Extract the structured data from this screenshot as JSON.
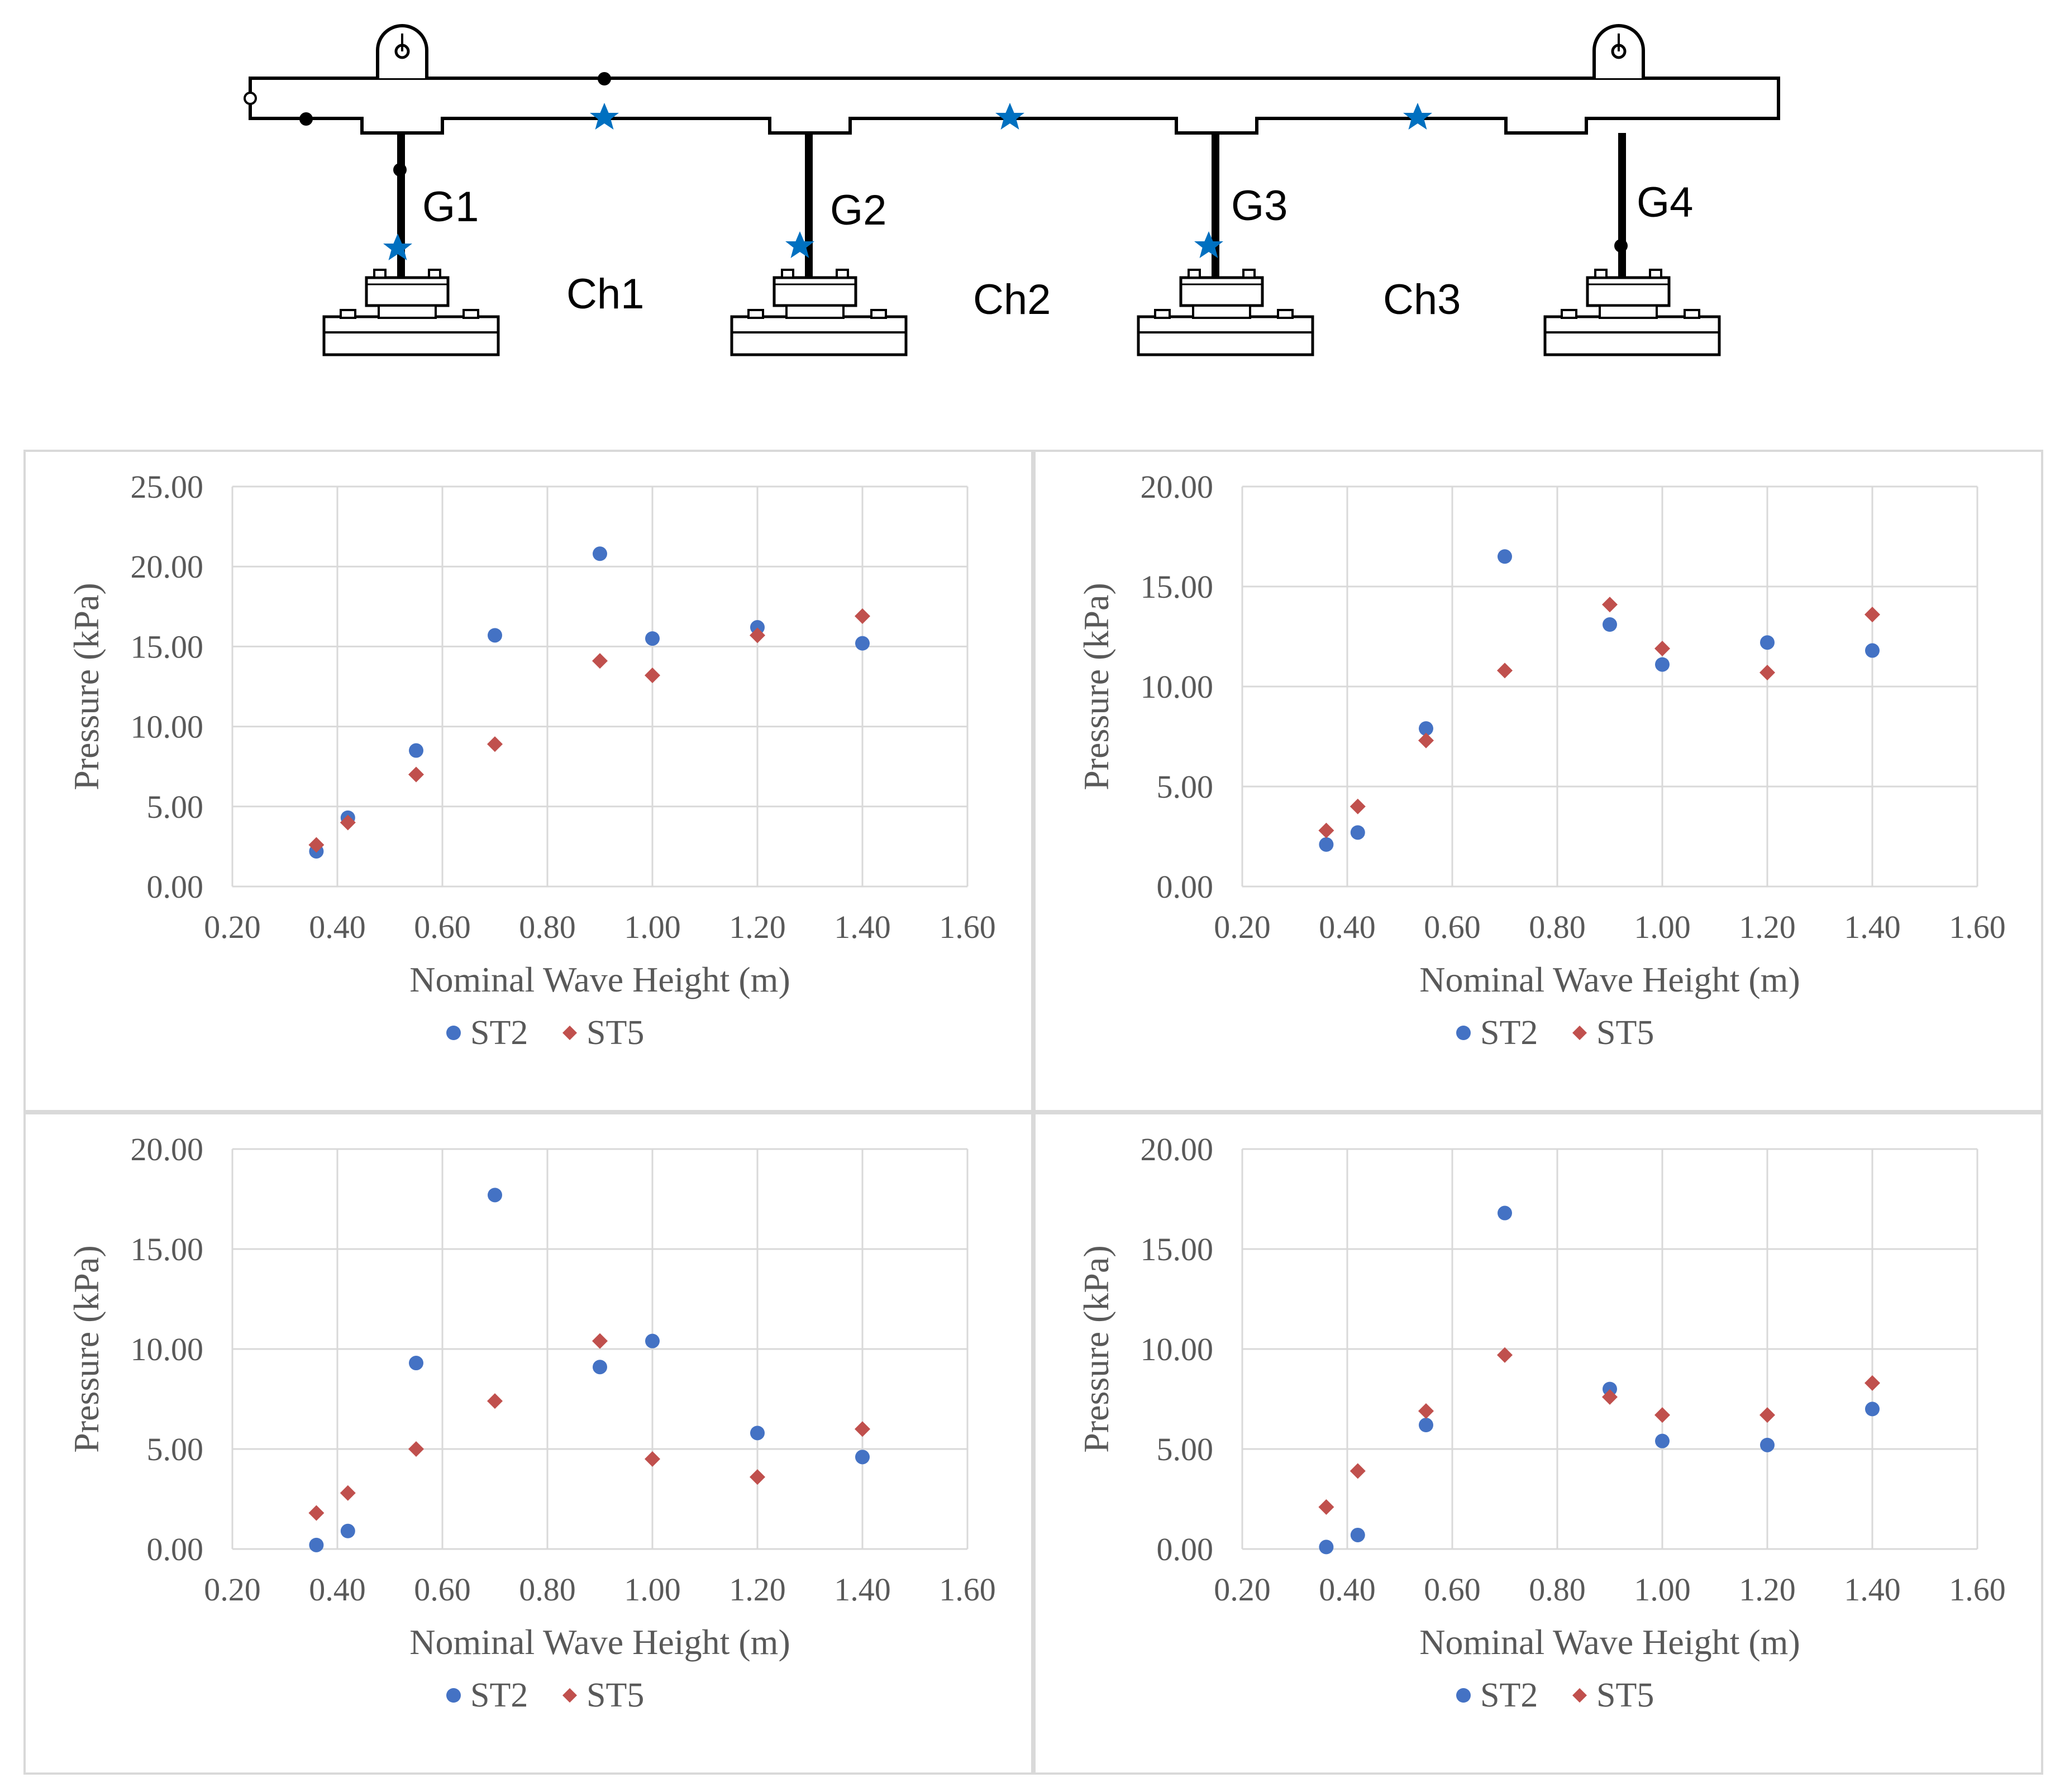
{
  "colors": {
    "st2": "#4472C4",
    "st5": "#C0504D",
    "gridline": "#d9d9d9",
    "text": "#595959",
    "star": "#0070C0"
  },
  "schematic": {
    "girders": [
      "G1",
      "G2",
      "G3",
      "G4"
    ],
    "chambers": [
      "Ch1",
      "Ch2",
      "Ch3"
    ]
  },
  "chart_data": [
    {
      "type": "scatter",
      "xlabel": "Nominal Wave Height (m)",
      "ylabel": "Pressure (kPa)",
      "xlim": [
        0.2,
        1.6
      ],
      "ylim": [
        0,
        25
      ],
      "xticks": [
        "0.20",
        "0.40",
        "0.60",
        "0.80",
        "1.00",
        "1.20",
        "1.40",
        "1.60"
      ],
      "yticks": [
        "0.00",
        "5.00",
        "10.00",
        "15.00",
        "20.00",
        "25.00"
      ],
      "legend": "bottom",
      "series": [
        {
          "name": "ST2",
          "marker": "circle",
          "x": [
            0.36,
            0.42,
            0.55,
            0.7,
            0.9,
            1.0,
            1.2,
            1.4
          ],
          "y": [
            2.2,
            4.3,
            8.5,
            15.7,
            20.8,
            15.5,
            16.2,
            15.2
          ]
        },
        {
          "name": "ST5",
          "marker": "diamond",
          "x": [
            0.36,
            0.42,
            0.55,
            0.7,
            0.9,
            1.0,
            1.2,
            1.4
          ],
          "y": [
            2.6,
            4.0,
            7.0,
            8.9,
            14.1,
            13.2,
            15.7,
            16.9
          ]
        }
      ]
    },
    {
      "type": "scatter",
      "xlabel": "Nominal Wave Height (m)",
      "ylabel": "Pressure (kPa)",
      "xlim": [
        0.2,
        1.6
      ],
      "ylim": [
        0,
        20
      ],
      "xticks": [
        "0.20",
        "0.40",
        "0.60",
        "0.80",
        "1.00",
        "1.20",
        "1.40",
        "1.60"
      ],
      "yticks": [
        "0.00",
        "5.00",
        "10.00",
        "15.00",
        "20.00"
      ],
      "legend": "bottom",
      "series": [
        {
          "name": "ST2",
          "marker": "circle",
          "x": [
            0.36,
            0.42,
            0.55,
            0.7,
            0.9,
            1.0,
            1.2,
            1.4
          ],
          "y": [
            2.1,
            2.7,
            7.9,
            16.5,
            13.1,
            11.1,
            12.2,
            11.8
          ]
        },
        {
          "name": "ST5",
          "marker": "diamond",
          "x": [
            0.36,
            0.42,
            0.55,
            0.7,
            0.9,
            1.0,
            1.2,
            1.4
          ],
          "y": [
            2.8,
            4.0,
            7.3,
            10.8,
            14.1,
            11.9,
            10.7,
            13.6
          ]
        }
      ]
    },
    {
      "type": "scatter",
      "xlabel": "Nominal Wave Height (m)",
      "ylabel": "Pressure (kPa)",
      "xlim": [
        0.2,
        1.6
      ],
      "ylim": [
        0,
        20
      ],
      "xticks": [
        "0.20",
        "0.40",
        "0.60",
        "0.80",
        "1.00",
        "1.20",
        "1.40",
        "1.60"
      ],
      "yticks": [
        "0.00",
        "5.00",
        "10.00",
        "15.00",
        "20.00"
      ],
      "legend": "bottom",
      "series": [
        {
          "name": "ST2",
          "marker": "circle",
          "x": [
            0.36,
            0.42,
            0.55,
            0.7,
            0.9,
            1.0,
            1.2,
            1.4
          ],
          "y": [
            0.2,
            0.9,
            9.3,
            17.7,
            9.1,
            10.4,
            5.8,
            4.6
          ]
        },
        {
          "name": "ST5",
          "marker": "diamond",
          "x": [
            0.36,
            0.42,
            0.55,
            0.7,
            0.9,
            1.0,
            1.2,
            1.4
          ],
          "y": [
            1.8,
            2.8,
            5.0,
            7.4,
            10.4,
            4.5,
            3.6,
            6.0
          ]
        }
      ]
    },
    {
      "type": "scatter",
      "xlabel": "Nominal Wave Height (m)",
      "ylabel": "Pressure (kPa)",
      "xlim": [
        0.2,
        1.6
      ],
      "ylim": [
        0,
        20
      ],
      "xticks": [
        "0.20",
        "0.40",
        "0.60",
        "0.80",
        "1.00",
        "1.20",
        "1.40",
        "1.60"
      ],
      "yticks": [
        "0.00",
        "5.00",
        "10.00",
        "15.00",
        "20.00"
      ],
      "legend": "bottom",
      "series": [
        {
          "name": "ST2",
          "marker": "circle",
          "x": [
            0.36,
            0.42,
            0.55,
            0.7,
            0.9,
            1.0,
            1.2,
            1.4
          ],
          "y": [
            0.1,
            0.7,
            6.2,
            16.8,
            8.0,
            5.4,
            5.2,
            7.0
          ]
        },
        {
          "name": "ST5",
          "marker": "diamond",
          "x": [
            0.36,
            0.42,
            0.55,
            0.7,
            0.9,
            1.0,
            1.2,
            1.4
          ],
          "y": [
            2.1,
            3.9,
            6.9,
            9.7,
            7.6,
            6.7,
            6.7,
            8.3
          ]
        }
      ]
    }
  ]
}
